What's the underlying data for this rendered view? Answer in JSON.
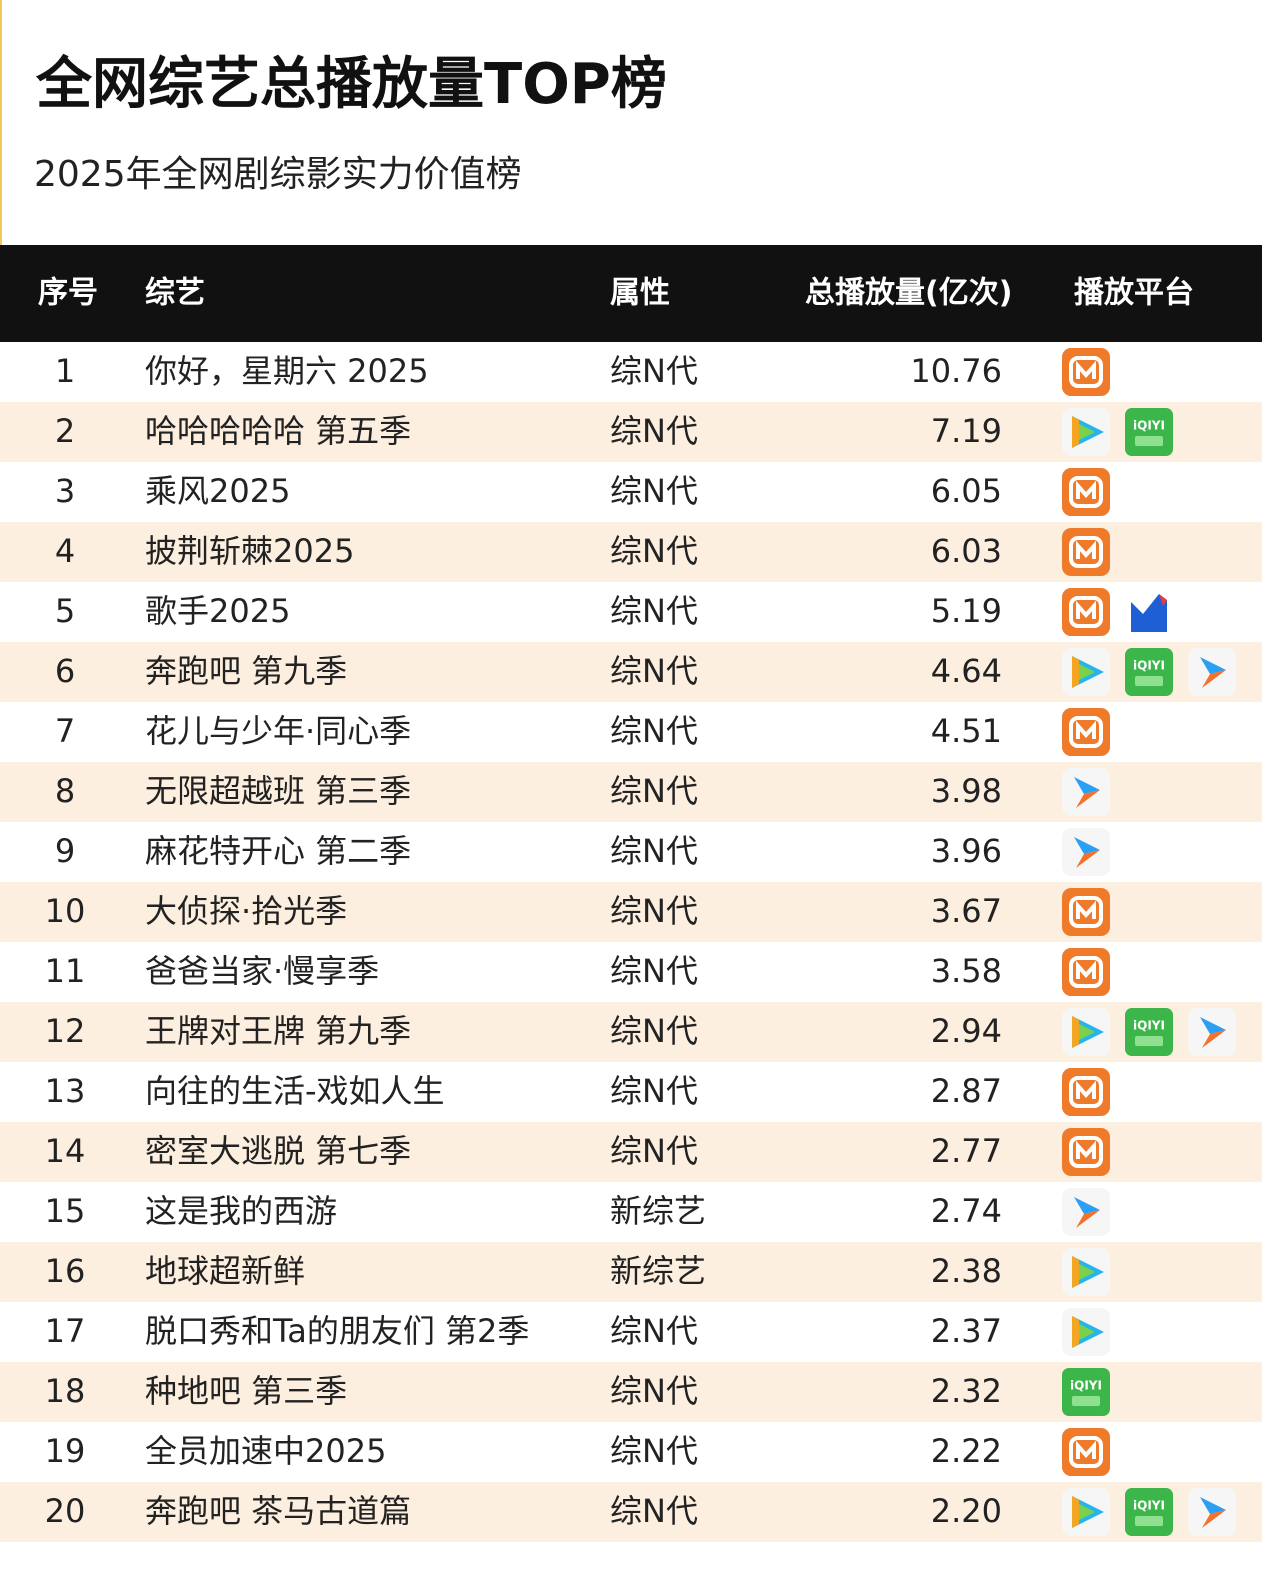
{
  "header": {
    "title": "全网综艺总播放量TOP榜",
    "subtitle": "2025年全网剧综影实力价值榜"
  },
  "table": {
    "columns": [
      "序号",
      "综艺",
      "属性",
      "总播放量(亿次)",
      "播放平台"
    ],
    "rows": [
      [
        1,
        "你好，星期六 2025",
        "综N代",
        "10.76"
      ],
      [
        2,
        "哈哈哈哈哈 第五季",
        "综N代",
        "7.19"
      ],
      [
        3,
        "乘风2025",
        "综N代",
        "6.05"
      ],
      [
        4,
        "披荆斩棘2025",
        "综N代",
        "6.03"
      ],
      [
        5,
        "歌手2025",
        "综N代",
        "5.19"
      ],
      [
        6,
        "奔跑吧 第九季",
        "综N代",
        "4.64"
      ],
      [
        7,
        "花儿与少年·同心季",
        "综N代",
        "4.51"
      ],
      [
        8,
        "无限超越班 第三季",
        "综N代",
        "3.98"
      ],
      [
        9,
        "麻花特开心 第二季",
        "综N代",
        "3.96"
      ],
      [
        10,
        "大侦探·拾光季",
        "综N代",
        "3.67"
      ],
      [
        11,
        "爸爸当家·慢享季",
        "综N代",
        "3.58"
      ],
      [
        12,
        "王牌对王牌 第九季",
        "综N代",
        "2.94"
      ],
      [
        13,
        "向往的生活-戏如人生",
        "综N代",
        "2.87"
      ],
      [
        14,
        "密室大逃脱 第七季",
        "综N代",
        "2.77"
      ],
      [
        15,
        "这是我的西游",
        "新综艺",
        "2.74"
      ],
      [
        16,
        "地球超新鲜",
        "新综艺",
        "2.38"
      ],
      [
        17,
        "脱口秀和Ta的朋友们 第2季",
        "综N代",
        "2.37"
      ],
      [
        18,
        "种地吧 第三季",
        "综N代",
        "2.32"
      ],
      [
        19,
        "全员加速中2025",
        "综N代",
        "2.22"
      ],
      [
        20,
        "奔跑吧 茶马古道篇",
        "综N代",
        "2.20"
      ]
    ]
  },
  "platform_icon_text": "iQIYI"
}
